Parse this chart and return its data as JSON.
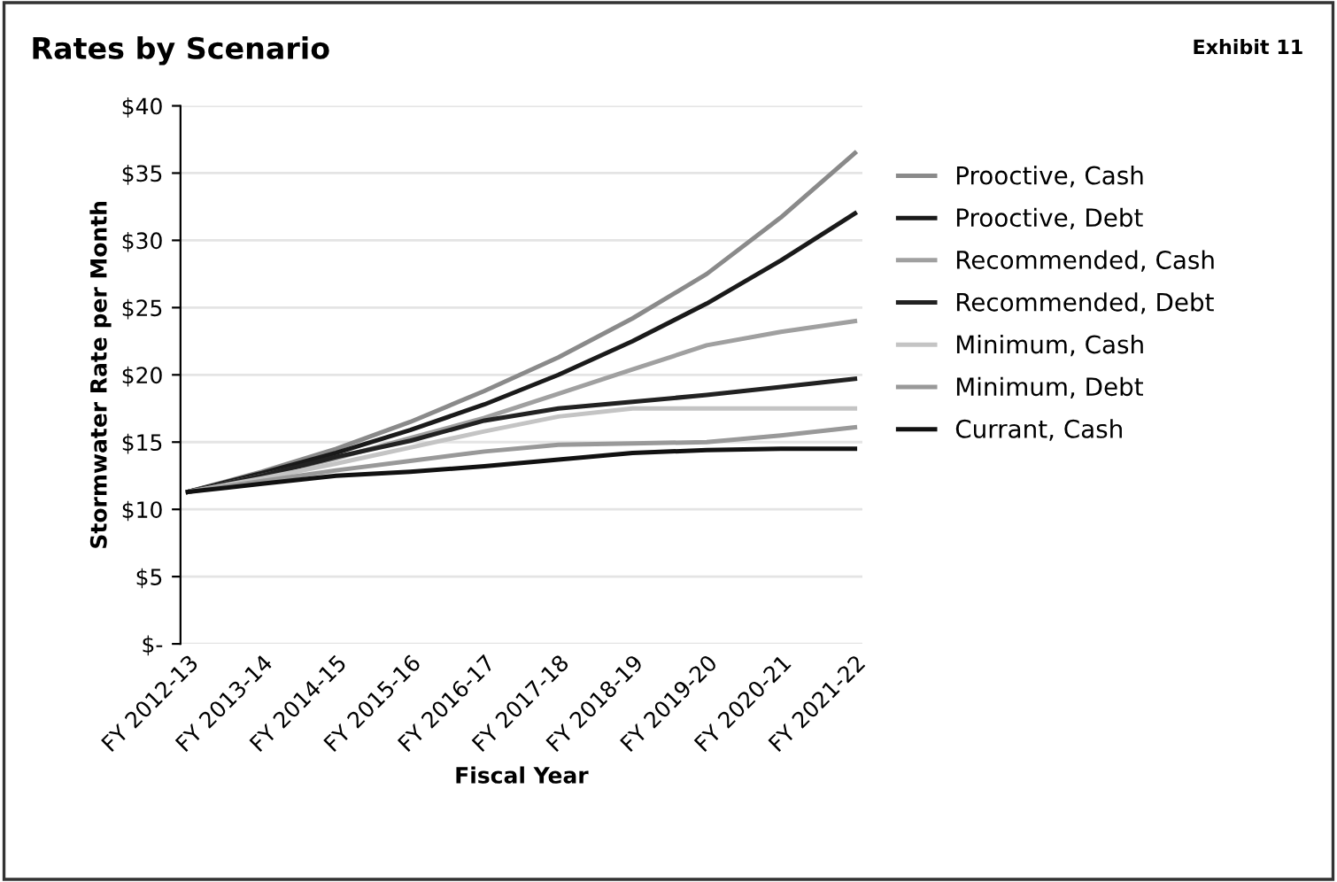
{
  "chart_data": {
    "type": "line",
    "title": "Rates by Scenario",
    "xlabel": "Fiscal Year",
    "ylabel": "Stormwater Rate per Month",
    "annotations": [
      "Exhibit 11"
    ],
    "categories": [
      "FY 2012-13",
      "FY 2013-14",
      "FY 2014-15",
      "FY 2015-16",
      "FY 2016-17",
      "FY 2017-18",
      "FY 2018-19",
      "FY 2019-20",
      "FY 2020-21",
      "FY 2021-22"
    ],
    "series": [
      {
        "name": "Prooctive, Cash",
        "color": "#8a8a8a",
        "values": [
          11.3,
          12.8,
          14.5,
          16.5,
          18.8,
          21.3,
          24.2,
          27.5,
          31.7,
          36.5
        ]
      },
      {
        "name": "Prooctive, Debt",
        "color": "#1a1a1a",
        "values": [
          11.3,
          12.7,
          14.2,
          15.9,
          17.8,
          20,
          22.5,
          25.3,
          28.5,
          32
        ]
      },
      {
        "name": "Recommended, Cash",
        "color": "#a0a0a0",
        "values": [
          11.3,
          12.5,
          13.8,
          15.3,
          16.8,
          18.6,
          20.4,
          22.2,
          23.2,
          24
        ]
      },
      {
        "name": "Recommended, Debt",
        "color": "#222222",
        "values": [
          11.3,
          12.5,
          13.9,
          15.1,
          16.6,
          17.5,
          18,
          18.5,
          19.1,
          19.7
        ]
      },
      {
        "name": "Minimum, Cash",
        "color": "#c4c4c4",
        "values": [
          11.3,
          12.3,
          13.4,
          14.6,
          15.8,
          16.9,
          17.5,
          17.5,
          17.5,
          17.5
        ]
      },
      {
        "name": "Minimum, Debt",
        "color": "#999999",
        "values": [
          11.3,
          12.1,
          12.9,
          13.6,
          14.3,
          14.8,
          14.9,
          15,
          15.5,
          16.1
        ]
      },
      {
        "name": "Currant, Cash",
        "color": "#111111",
        "values": [
          11.3,
          11.9,
          12.5,
          12.8,
          13.2,
          13.7,
          14.2,
          14.4,
          14.5,
          14.5
        ]
      }
    ],
    "ylim": [
      0,
      40
    ],
    "yticks": [
      {
        "value": 0,
        "label": "$-"
      },
      {
        "value": 5,
        "label": "$5"
      },
      {
        "value": 10,
        "label": "$10"
      },
      {
        "value": 15,
        "label": "$15"
      },
      {
        "value": 20,
        "label": "$20"
      },
      {
        "value": 25,
        "label": "$25"
      },
      {
        "value": 30,
        "label": "$30"
      },
      {
        "value": 35,
        "label": "$35"
      },
      {
        "value": 40,
        "label": "$40"
      }
    ],
    "grid": "y",
    "legend": "right",
    "marker": "none",
    "line_style": "solid"
  }
}
